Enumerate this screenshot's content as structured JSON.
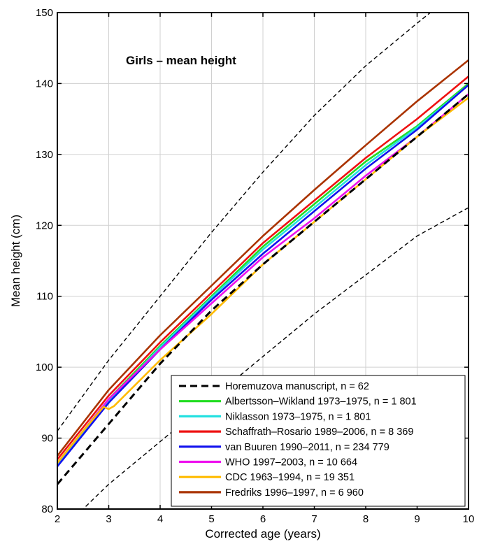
{
  "chart_data": {
    "type": "line",
    "title": "Girls – mean height",
    "xlabel": "Corrected age (years)",
    "ylabel": "Mean height (cm)",
    "xlim": [
      2,
      10
    ],
    "ylim": [
      80,
      150
    ],
    "xticks": [
      2,
      3,
      4,
      5,
      6,
      7,
      8,
      9,
      10
    ],
    "yticks": [
      80,
      90,
      100,
      110,
      120,
      130,
      140,
      150
    ],
    "grid": true,
    "legend_position": "bottom-right",
    "bands": [
      {
        "x": [
          2,
          2.5,
          3,
          3.5,
          4,
          5,
          6,
          7,
          8,
          9,
          10
        ],
        "y": [
          76,
          80,
          83.5,
          86.5,
          89.5,
          95.5,
          101.5,
          107.5,
          113,
          118.5,
          122.5
        ]
      },
      {
        "x": [
          2,
          2.5,
          3,
          3.5,
          4,
          5,
          6,
          7,
          8,
          9,
          9.6
        ],
        "y": [
          91,
          96,
          101,
          105.5,
          110,
          119,
          127.5,
          135.5,
          142.5,
          148.5,
          152
        ]
      }
    ],
    "series": [
      {
        "name": "Horemuzova manuscript, n = 62",
        "color": "#000000",
        "dashed": true,
        "x": [
          2,
          3,
          4,
          5,
          6,
          7,
          8,
          9,
          10
        ],
        "y": [
          83.5,
          92,
          100.5,
          108,
          114.5,
          120.5,
          126.5,
          132.5,
          138.5
        ]
      },
      {
        "name": "Albertsson–Wikland 1973–1975, n = 1 801",
        "color": "#22dd22",
        "x": [
          2,
          3,
          4,
          5,
          6,
          7,
          8,
          9,
          10
        ],
        "y": [
          86.5,
          95.5,
          103,
          110,
          117,
          123,
          129,
          134,
          140
        ]
      },
      {
        "name": "Niklasson 1973–1975, n = 1 801",
        "color": "#22e0e0",
        "x": [
          2,
          3,
          4,
          5,
          6,
          7,
          8,
          9,
          10
        ],
        "y": [
          86.3,
          95.2,
          102.8,
          109.8,
          116.6,
          122.5,
          128.5,
          133.8,
          139.8
        ]
      },
      {
        "name": "Schaffrath–Rosario 1989–2006, n = 8 369",
        "color": "#ee1111",
        "x": [
          2,
          3,
          4,
          5,
          6,
          7,
          8,
          9,
          10
        ],
        "y": [
          87,
          96,
          103.5,
          110.5,
          117.5,
          123.5,
          129.5,
          135,
          141
        ]
      },
      {
        "name": "van Buuren 1990–2011, n = 234 779",
        "color": "#1111ee",
        "x": [
          2,
          3,
          4,
          5,
          6,
          7,
          8,
          9,
          10
        ],
        "y": [
          86,
          95,
          102.5,
          109.5,
          116,
          122,
          128,
          133.5,
          139.8
        ]
      },
      {
        "name": "WHO 1997–2003, n = 10 664",
        "color": "#ee11ee",
        "x": [
          2,
          3,
          4,
          5,
          6,
          7,
          8,
          9,
          10
        ],
        "y": [
          86.5,
          95.5,
          102.5,
          109,
          115.5,
          121,
          127,
          132.5,
          138.5
        ]
      },
      {
        "name": "CDC 1963–1994, n = 19 351",
        "color": "#ffbb00",
        "x": [
          2,
          2.5,
          2.9,
          3.0,
          3.1,
          4,
          5,
          6,
          7,
          8,
          9,
          10
        ],
        "y": [
          86.5,
          91,
          94.4,
          94.1,
          94.5,
          101,
          107.5,
          114.5,
          120.5,
          126.5,
          132.5,
          138
        ]
      },
      {
        "name": "Fredriks 1996–1997, n = 6 960",
        "color": "#aa3300",
        "x": [
          2,
          3,
          4,
          5,
          6,
          7,
          8,
          9,
          10
        ],
        "y": [
          87.5,
          96.8,
          104.5,
          111.5,
          118.5,
          125,
          131.3,
          137.5,
          143.3
        ]
      }
    ]
  }
}
